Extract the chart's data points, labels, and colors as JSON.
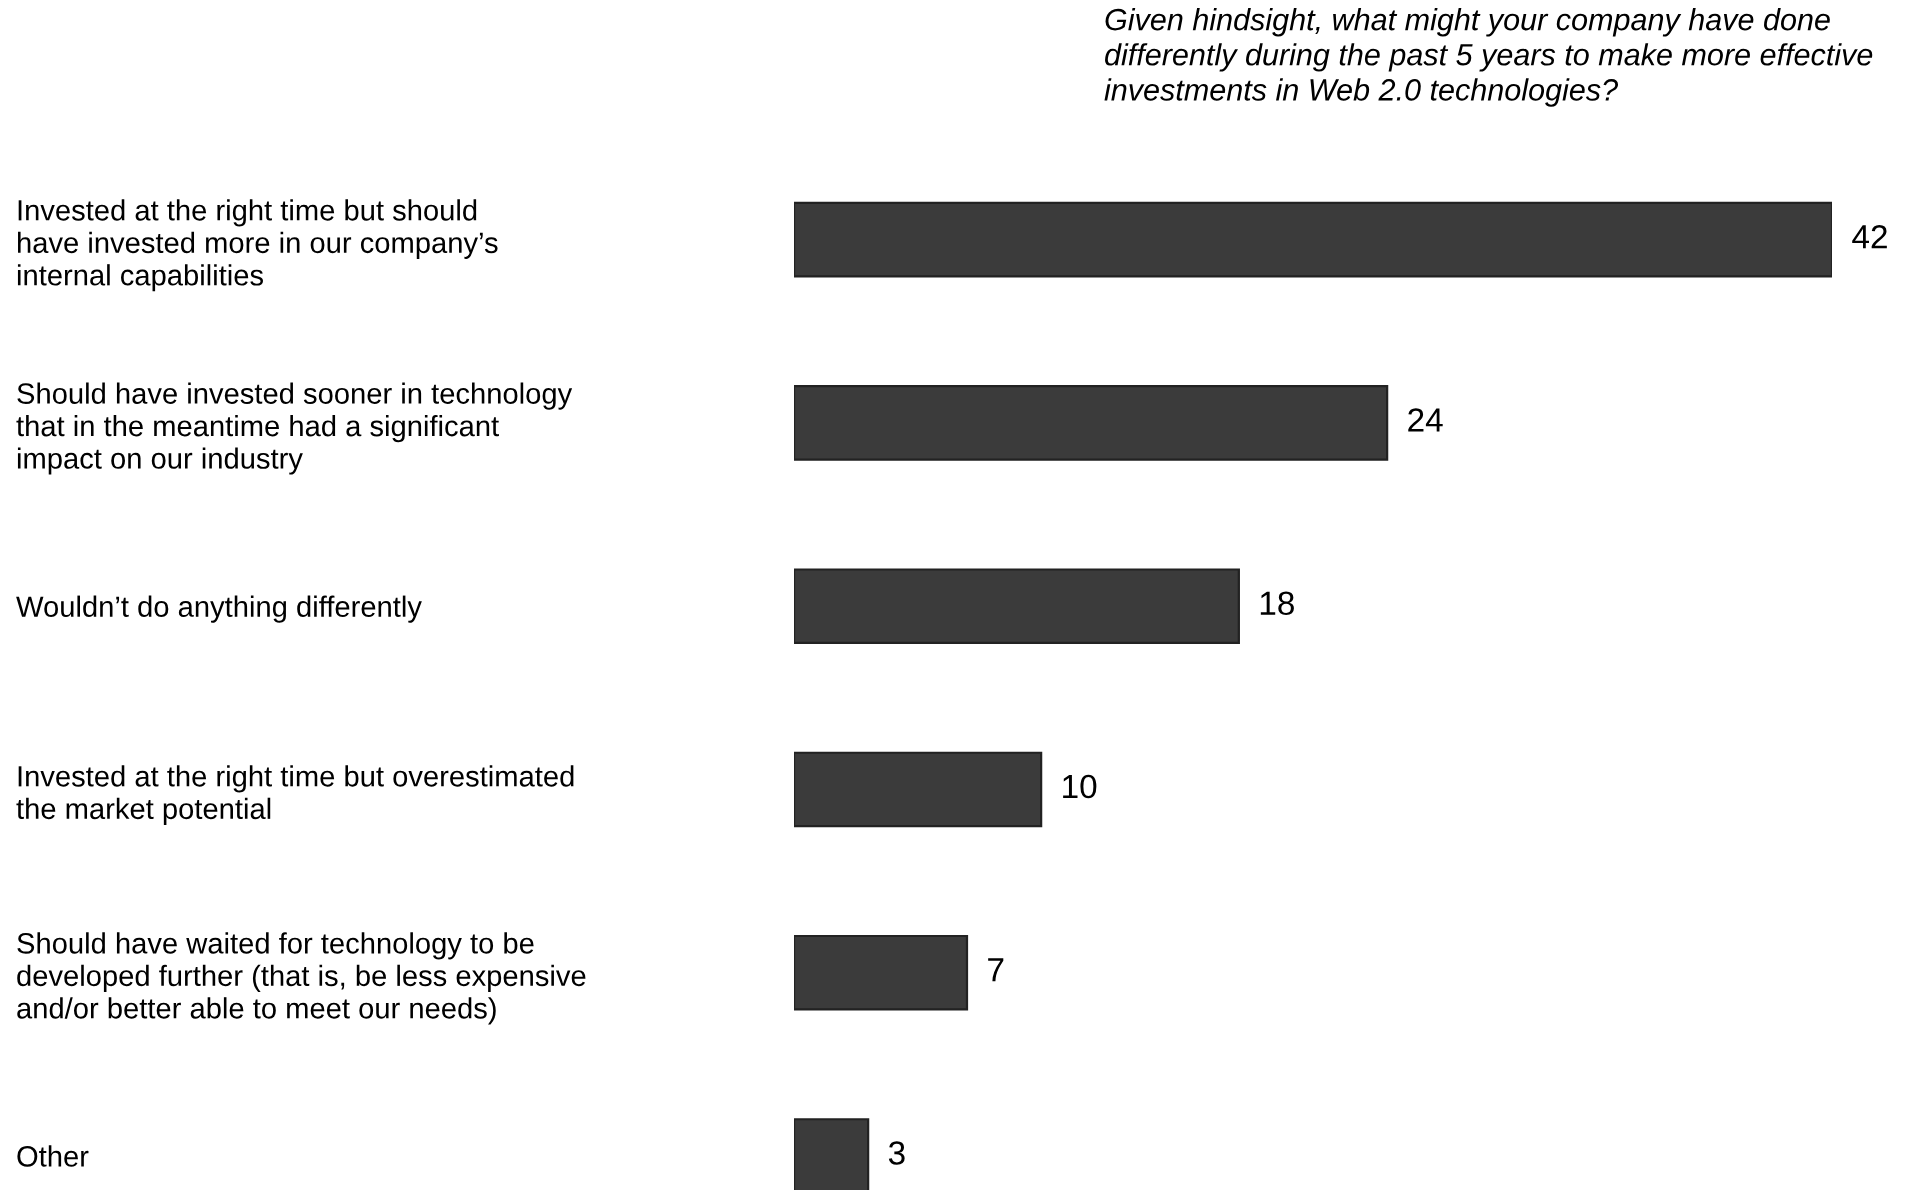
{
  "chart_data": {
    "type": "bar",
    "orientation": "horizontal",
    "title": "Given hindsight, what might your company have done\ndifferently during the past 5 years to make more effective\ninvestments in Web 2.0 technologies?",
    "categories": [
      "Invested at the right time but should\nhave invested more in our company’s\ninternal capabilities",
      "Should have invested sooner in technology\nthat in the meantime had a significant\nimpact on our industry",
      "Wouldn’t do anything differently",
      "Invested at the right time but overestimated\nthe market potential",
      "Should have waited for technology to be\ndeveloped further (that is, be less expensive\nand/or better able to meet our needs)",
      "Other"
    ],
    "values": [
      42,
      24,
      18,
      10,
      7,
      3
    ],
    "color": "#3b3b3b",
    "data_labels": true,
    "grid": false,
    "legend": false
  }
}
